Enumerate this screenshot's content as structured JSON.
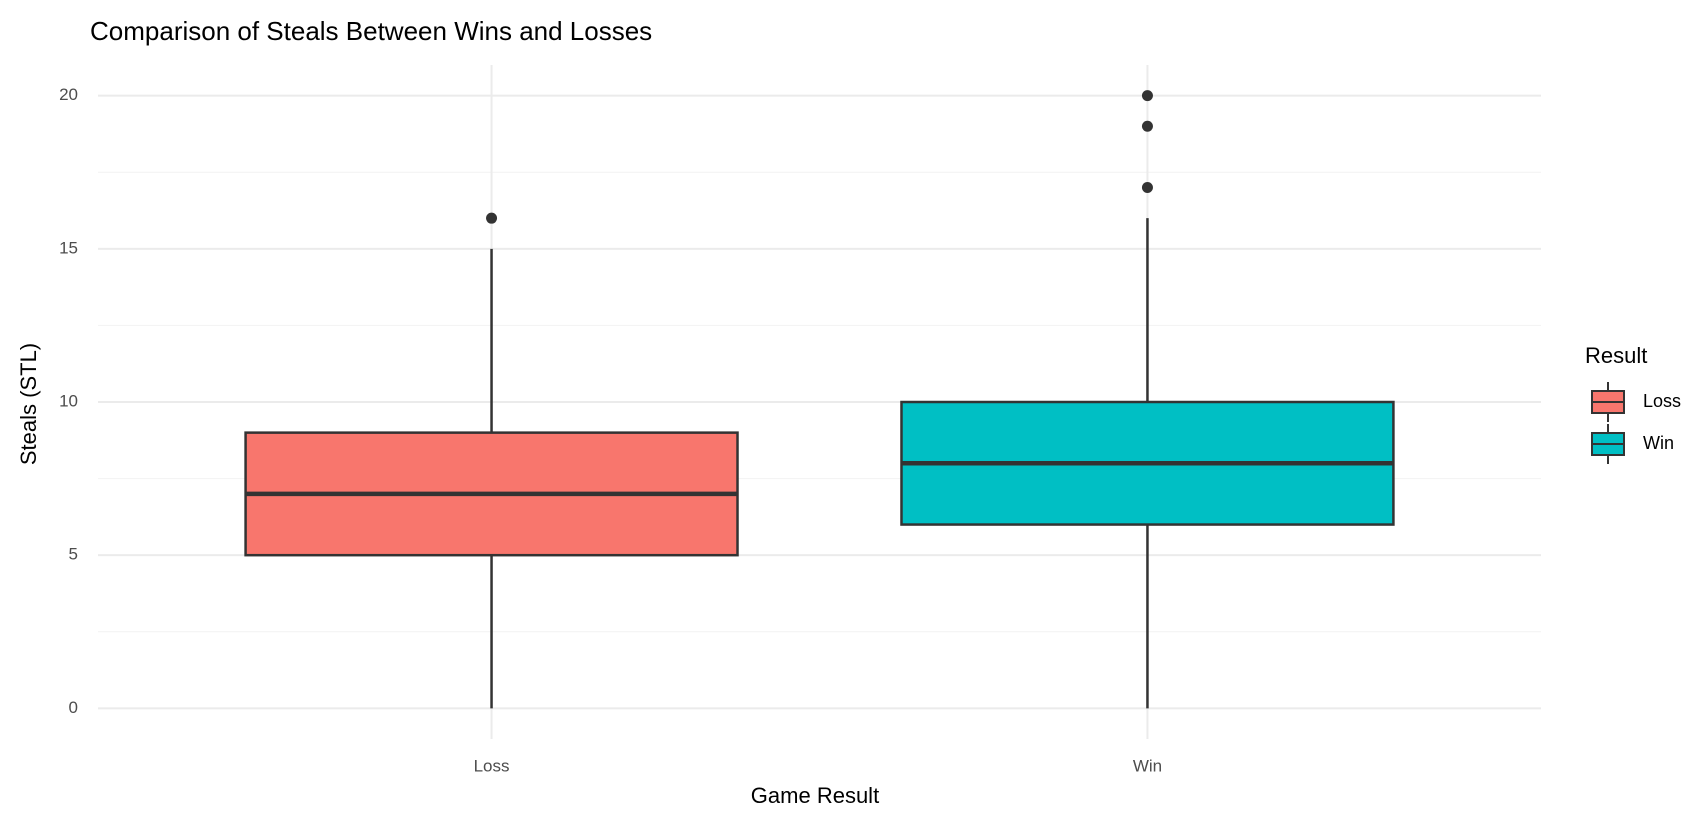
{
  "chart_data": {
    "type": "box",
    "title": "Comparison of Steals Between Wins and Losses",
    "x_label": "Game Result",
    "y_label": "Steals (STL)",
    "legend_title": "Result",
    "categories": [
      "Loss",
      "Win"
    ],
    "series": [
      {
        "name": "Loss",
        "color": "#f8766d",
        "min": 0,
        "q1": 5,
        "median": 7,
        "q3": 9,
        "max": 15,
        "outliers": [
          16
        ]
      },
      {
        "name": "Win",
        "color": "#00bfc4",
        "min": 0,
        "q1": 6,
        "median": 8,
        "q3": 10,
        "max": 16,
        "outliers": [
          17,
          19,
          20
        ]
      }
    ],
    "ylim": [
      -1,
      21
    ],
    "yticks": [
      0,
      5,
      10,
      15,
      20
    ],
    "grid": true,
    "legend_position": "right"
  }
}
